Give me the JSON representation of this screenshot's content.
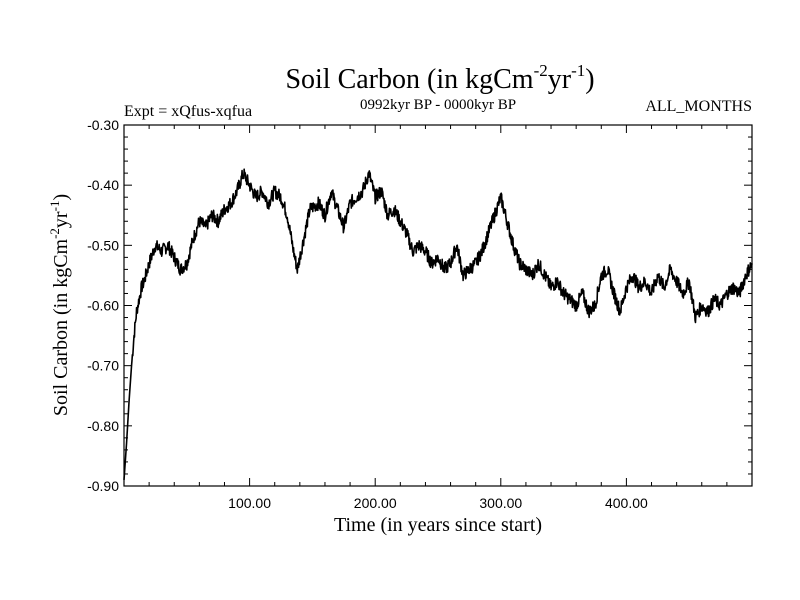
{
  "chart_data": {
    "type": "line",
    "title": {
      "main": "Soil Carbon (in kgCm",
      "sup1": "-2",
      "mid": "yr",
      "sup2": "-1",
      "end": ")"
    },
    "expt_label": "Expt = xQfus-xqfua",
    "period_label": "0992kyr BP - 0000kyr BP",
    "months_label": "ALL_MONTHS",
    "xlabel": "Time (in years since start)",
    "ylabel": {
      "main": "Soil Carbon (in kgCm",
      "sup1": "-2",
      "mid": "yr",
      "sup2": "-1",
      "end": ")"
    },
    "xlim": [
      0,
      500
    ],
    "ylim": [
      -0.9,
      -0.3
    ],
    "xticks": [
      {
        "value": 100,
        "label": "100.00"
      },
      {
        "value": 200,
        "label": "200.00"
      },
      {
        "value": 300,
        "label": "300.00"
      },
      {
        "value": 400,
        "label": "400.00"
      }
    ],
    "yticks": [
      {
        "value": -0.3,
        "label": "-0.30"
      },
      {
        "value": -0.4,
        "label": "-0.40"
      },
      {
        "value": -0.5,
        "label": "-0.50"
      },
      {
        "value": -0.6,
        "label": "-0.60"
      },
      {
        "value": -0.7,
        "label": "-0.70"
      },
      {
        "value": -0.8,
        "label": "-0.80"
      },
      {
        "value": -0.9,
        "label": "-0.90"
      }
    ],
    "series": [
      {
        "name": "Soil Carbon",
        "color": "#000000",
        "x": [
          0,
          2,
          4,
          6,
          8,
          10,
          12,
          14,
          16,
          20,
          25,
          30,
          35,
          40,
          45,
          50,
          55,
          60,
          65,
          70,
          75,
          80,
          85,
          90,
          95,
          100,
          105,
          110,
          115,
          120,
          125,
          130,
          135,
          138,
          142,
          148,
          155,
          160,
          165,
          170,
          175,
          180,
          185,
          190,
          195,
          200,
          205,
          210,
          215,
          220,
          225,
          230,
          235,
          240,
          245,
          250,
          255,
          260,
          265,
          270,
          275,
          280,
          285,
          290,
          295,
          300,
          305,
          310,
          315,
          320,
          325,
          330,
          335,
          340,
          345,
          350,
          355,
          360,
          365,
          370,
          375,
          380,
          385,
          390,
          395,
          400,
          405,
          410,
          415,
          420,
          425,
          430,
          435,
          440,
          445,
          450,
          455,
          460,
          465,
          470,
          475,
          480,
          485,
          490,
          495,
          500
        ],
        "y": [
          -0.89,
          -0.83,
          -0.76,
          -0.7,
          -0.65,
          -0.61,
          -0.59,
          -0.57,
          -0.56,
          -0.53,
          -0.5,
          -0.51,
          -0.5,
          -0.52,
          -0.54,
          -0.53,
          -0.49,
          -0.46,
          -0.47,
          -0.45,
          -0.46,
          -0.44,
          -0.43,
          -0.41,
          -0.38,
          -0.4,
          -0.42,
          -0.41,
          -0.43,
          -0.41,
          -0.42,
          -0.45,
          -0.51,
          -0.54,
          -0.5,
          -0.44,
          -0.43,
          -0.45,
          -0.41,
          -0.44,
          -0.47,
          -0.43,
          -0.42,
          -0.41,
          -0.38,
          -0.42,
          -0.41,
          -0.45,
          -0.44,
          -0.46,
          -0.48,
          -0.51,
          -0.5,
          -0.51,
          -0.53,
          -0.52,
          -0.54,
          -0.53,
          -0.5,
          -0.55,
          -0.54,
          -0.53,
          -0.51,
          -0.48,
          -0.45,
          -0.42,
          -0.46,
          -0.5,
          -0.53,
          -0.54,
          -0.55,
          -0.53,
          -0.55,
          -0.57,
          -0.56,
          -0.58,
          -0.59,
          -0.6,
          -0.58,
          -0.61,
          -0.6,
          -0.55,
          -0.54,
          -0.58,
          -0.61,
          -0.57,
          -0.55,
          -0.57,
          -0.56,
          -0.58,
          -0.55,
          -0.57,
          -0.54,
          -0.56,
          -0.58,
          -0.56,
          -0.62,
          -0.6,
          -0.61,
          -0.59,
          -0.6,
          -0.58,
          -0.57,
          -0.58,
          -0.55,
          -0.53
        ]
      }
    ]
  }
}
